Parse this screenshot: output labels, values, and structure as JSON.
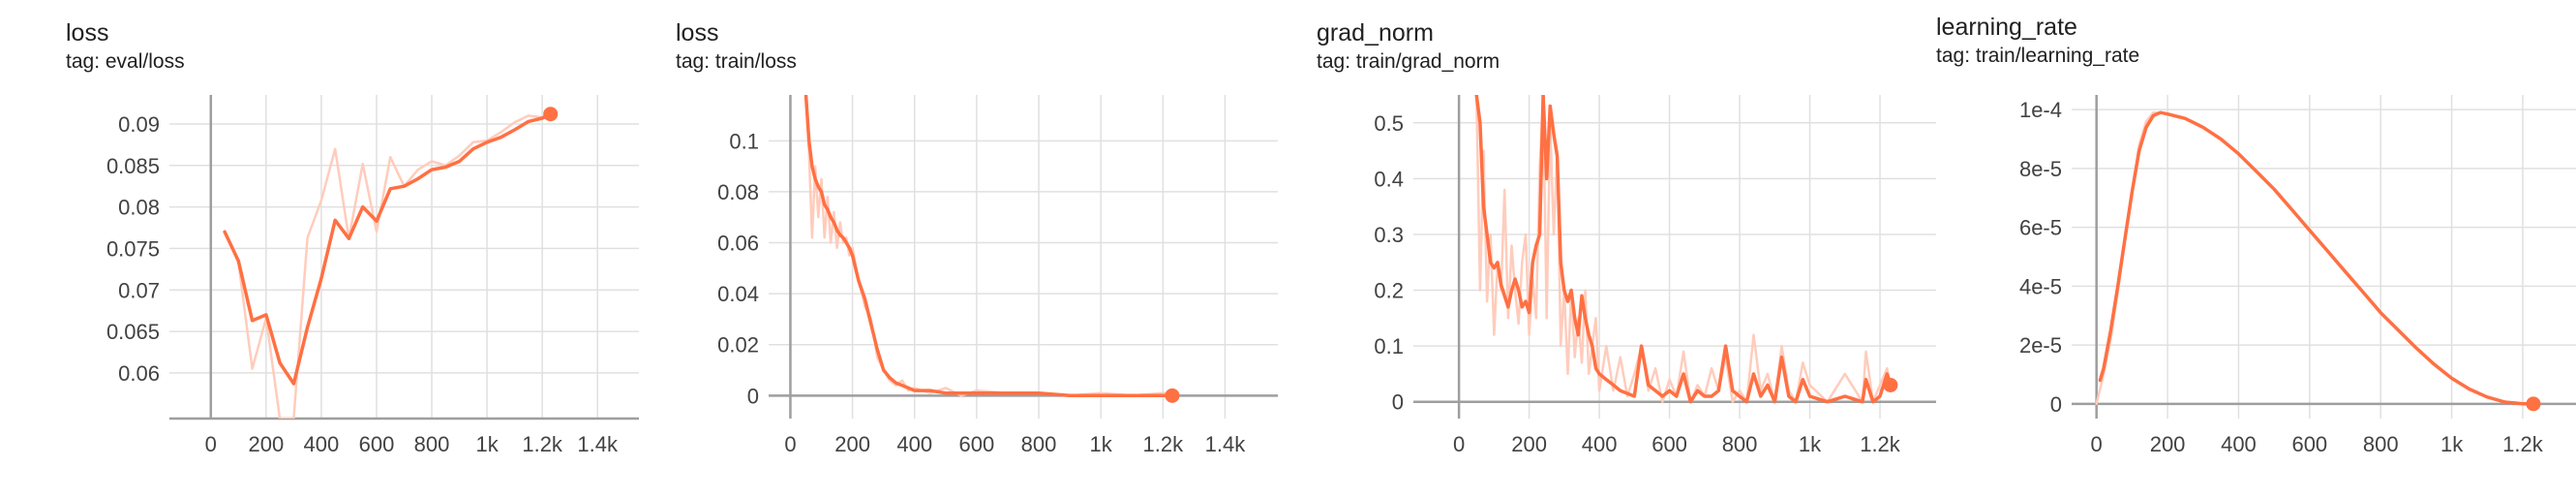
{
  "colors": {
    "smoothed": "#ff7043",
    "raw": "#ffccbc",
    "grid": "#e0e0e0",
    "axis": "#9e9e9e"
  },
  "chart_data": [
    {
      "type": "line",
      "title": "loss",
      "subtitle": "tag: eval/loss",
      "xlim": [
        -150,
        1550
      ],
      "ylim": [
        0.0545,
        0.0935
      ],
      "xticks": [
        0,
        200,
        400,
        600,
        800,
        1000,
        1200,
        1400
      ],
      "xtick_labels": [
        "0",
        "200",
        "400",
        "600",
        "800",
        "1k",
        "1.2k",
        "1.4k"
      ],
      "yticks": [
        0.06,
        0.065,
        0.07,
        0.075,
        0.08,
        0.085,
        0.09
      ],
      "ytick_labels": [
        "0.06",
        "0.065",
        "0.07",
        "0.075",
        "0.08",
        "0.085",
        "0.09"
      ],
      "series": [
        {
          "role": "raw",
          "x": [
            50,
            100,
            150,
            200,
            250,
            300,
            350,
            400,
            450,
            500,
            550,
            600,
            650,
            700,
            750,
            800,
            850,
            900,
            950,
            1000,
            1050,
            1100,
            1150,
            1200,
            1230
          ],
          "y": [
            0.0771,
            0.0733,
            0.0605,
            0.0666,
            0.0545,
            0.0545,
            0.0763,
            0.0808,
            0.087,
            0.0762,
            0.0852,
            0.077,
            0.086,
            0.0825,
            0.0845,
            0.0855,
            0.085,
            0.0862,
            0.0878,
            0.088,
            0.089,
            0.0902,
            0.091,
            0.0908,
            0.0912
          ]
        },
        {
          "role": "smoothed",
          "x": [
            50,
            100,
            150,
            200,
            250,
            300,
            350,
            400,
            450,
            500,
            550,
            600,
            650,
            700,
            750,
            800,
            850,
            900,
            950,
            1000,
            1050,
            1100,
            1150,
            1200,
            1230
          ],
          "y": [
            0.077,
            0.0735,
            0.0663,
            0.067,
            0.0612,
            0.0587,
            0.0655,
            0.0714,
            0.0784,
            0.0762,
            0.08,
            0.0783,
            0.0822,
            0.0825,
            0.0834,
            0.0845,
            0.0848,
            0.0855,
            0.087,
            0.0878,
            0.0884,
            0.0893,
            0.0903,
            0.0907,
            0.0912
          ]
        }
      ]
    },
    {
      "type": "line",
      "title": "loss",
      "subtitle": "tag: train/loss",
      "xlim": [
        -70,
        1570
      ],
      "ylim": [
        -0.009,
        0.118
      ],
      "xticks": [
        0,
        200,
        400,
        600,
        800,
        1000,
        1200,
        1400
      ],
      "xtick_labels": [
        "0",
        "200",
        "400",
        "600",
        "800",
        "1k",
        "1.2k",
        "1.4k"
      ],
      "yticks": [
        0,
        0.02,
        0.04,
        0.06,
        0.08,
        0.1
      ],
      "ytick_labels": [
        "0",
        "0.02",
        "0.04",
        "0.06",
        "0.08",
        "0.1"
      ],
      "series": [
        {
          "role": "raw",
          "x": [
            50,
            60,
            70,
            80,
            90,
            100,
            110,
            120,
            130,
            140,
            150,
            160,
            170,
            180,
            190,
            200,
            220,
            240,
            260,
            280,
            300,
            320,
            340,
            360,
            380,
            400,
            450,
            500,
            550,
            600,
            700,
            800,
            900,
            1000,
            1100,
            1200,
            1230
          ],
          "y": [
            0.118,
            0.095,
            0.062,
            0.09,
            0.07,
            0.085,
            0.062,
            0.078,
            0.06,
            0.072,
            0.058,
            0.068,
            0.06,
            0.062,
            0.055,
            0.058,
            0.045,
            0.035,
            0.03,
            0.015,
            0.01,
            0.006,
            0.004,
            0.006,
            0.002,
            0.003,
            0.001,
            0.003,
            0.0,
            0.002,
            0.001,
            0.001,
            0.0,
            0.001,
            0.0,
            0.001,
            0.001
          ]
        },
        {
          "role": "smoothed",
          "x": [
            50,
            60,
            70,
            80,
            90,
            100,
            110,
            120,
            130,
            140,
            150,
            160,
            170,
            180,
            190,
            200,
            220,
            240,
            260,
            280,
            300,
            320,
            340,
            360,
            380,
            400,
            450,
            500,
            550,
            600,
            700,
            800,
            900,
            1000,
            1100,
            1200,
            1230
          ],
          "y": [
            0.118,
            0.1,
            0.09,
            0.085,
            0.082,
            0.08,
            0.075,
            0.073,
            0.07,
            0.068,
            0.065,
            0.063,
            0.062,
            0.06,
            0.058,
            0.055,
            0.045,
            0.038,
            0.028,
            0.018,
            0.01,
            0.007,
            0.005,
            0.004,
            0.003,
            0.002,
            0.002,
            0.001,
            0.001,
            0.001,
            0.001,
            0.001,
            0.0,
            0.0,
            0.0,
            0.0,
            0.0
          ]
        }
      ]
    },
    {
      "type": "line",
      "title": "grad_norm",
      "subtitle": "tag: train/grad_norm",
      "xlim": [
        -130,
        1360
      ],
      "ylim": [
        -0.03,
        0.55
      ],
      "xticks": [
        0,
        200,
        400,
        600,
        800,
        1000,
        1200
      ],
      "xtick_labels": [
        "0",
        "200",
        "400",
        "600",
        "800",
        "1k",
        "1.2k"
      ],
      "yticks": [
        0,
        0.1,
        0.2,
        0.3,
        0.4,
        0.5
      ],
      "ytick_labels": [
        "0",
        "0.1",
        "0.2",
        "0.3",
        "0.4",
        "0.5"
      ],
      "series": [
        {
          "role": "raw",
          "x": [
            50,
            60,
            70,
            80,
            90,
            100,
            110,
            120,
            130,
            140,
            150,
            160,
            170,
            180,
            190,
            200,
            210,
            220,
            230,
            240,
            250,
            260,
            270,
            280,
            290,
            300,
            310,
            320,
            330,
            340,
            350,
            360,
            370,
            380,
            390,
            400,
            420,
            440,
            460,
            480,
            500,
            520,
            540,
            560,
            580,
            600,
            620,
            640,
            660,
            680,
            700,
            720,
            740,
            760,
            780,
            800,
            820,
            840,
            860,
            880,
            900,
            920,
            940,
            960,
            980,
            1000,
            1050,
            1100,
            1150,
            1160,
            1180,
            1200,
            1220,
            1230
          ],
          "y": [
            0.55,
            0.2,
            0.45,
            0.18,
            0.3,
            0.12,
            0.25,
            0.2,
            0.38,
            0.15,
            0.28,
            0.2,
            0.14,
            0.25,
            0.3,
            0.12,
            0.22,
            0.15,
            0.42,
            0.55,
            0.15,
            0.5,
            0.3,
            0.45,
            0.1,
            0.2,
            0.05,
            0.2,
            0.08,
            0.15,
            0.07,
            0.2,
            0.05,
            0.1,
            0.15,
            0.02,
            0.1,
            0.02,
            0.08,
            0.01,
            0.05,
            0.1,
            0.02,
            0.06,
            0.0,
            0.04,
            0.01,
            0.09,
            0.0,
            0.03,
            0.01,
            0.06,
            0.02,
            0.08,
            0.0,
            0.02,
            0.0,
            0.12,
            0.02,
            0.05,
            0.0,
            0.1,
            0.02,
            0.0,
            0.07,
            0.03,
            0.0,
            0.05,
            0.0,
            0.09,
            0.0,
            0.03,
            0.06,
            0.03
          ]
        },
        {
          "role": "smoothed",
          "x": [
            50,
            60,
            70,
            80,
            90,
            100,
            110,
            120,
            130,
            140,
            150,
            160,
            170,
            180,
            190,
            200,
            210,
            220,
            230,
            240,
            250,
            260,
            270,
            280,
            290,
            300,
            310,
            320,
            330,
            340,
            350,
            360,
            370,
            380,
            390,
            400,
            420,
            440,
            460,
            480,
            500,
            520,
            540,
            560,
            580,
            600,
            620,
            640,
            660,
            680,
            700,
            720,
            740,
            760,
            780,
            800,
            820,
            840,
            860,
            880,
            900,
            920,
            940,
            960,
            980,
            1000,
            1050,
            1100,
            1150,
            1160,
            1180,
            1200,
            1220,
            1230
          ],
          "y": [
            0.55,
            0.5,
            0.35,
            0.3,
            0.25,
            0.24,
            0.25,
            0.21,
            0.19,
            0.17,
            0.2,
            0.22,
            0.2,
            0.17,
            0.18,
            0.16,
            0.25,
            0.28,
            0.3,
            0.55,
            0.4,
            0.53,
            0.48,
            0.44,
            0.25,
            0.2,
            0.18,
            0.2,
            0.15,
            0.12,
            0.19,
            0.15,
            0.12,
            0.1,
            0.06,
            0.05,
            0.04,
            0.03,
            0.02,
            0.015,
            0.01,
            0.1,
            0.03,
            0.02,
            0.01,
            0.02,
            0.01,
            0.05,
            0.0,
            0.02,
            0.01,
            0.01,
            0.02,
            0.1,
            0.02,
            0.01,
            0.0,
            0.05,
            0.01,
            0.03,
            0.0,
            0.08,
            0.01,
            0.0,
            0.04,
            0.01,
            0.0,
            0.01,
            0.0,
            0.04,
            0.0,
            0.01,
            0.05,
            0.03
          ]
        }
      ]
    },
    {
      "type": "line",
      "title": "learning_rate",
      "subtitle": "tag: train/learning_rate",
      "xlim": [
        -70,
        1350
      ],
      "ylim": [
        -5e-06,
        0.000105
      ],
      "xticks": [
        0,
        200,
        400,
        600,
        800,
        1000,
        1200
      ],
      "xtick_labels": [
        "0",
        "200",
        "400",
        "600",
        "800",
        "1k",
        "1.2k"
      ],
      "yticks": [
        0,
        2e-05,
        4e-05,
        6e-05,
        8e-05,
        0.0001
      ],
      "ytick_labels": [
        "0",
        "2e-5",
        "4e-5",
        "6e-5",
        "8e-5",
        "1e-4"
      ],
      "series": [
        {
          "role": "raw",
          "x": [
            0,
            20,
            40,
            60,
            80,
            100,
            120,
            140,
            160,
            180,
            200,
            250,
            300,
            350,
            400,
            450,
            500,
            550,
            600,
            650,
            700,
            750,
            800,
            850,
            900,
            950,
            1000,
            1050,
            1100,
            1150,
            1200,
            1230
          ],
          "y": [
            0,
            1e-05,
            2.2e-05,
            3.8e-05,
            5.5e-05,
            7.2e-05,
            8.8e-05,
            9.6e-05,
            9.9e-05,
            9.9e-05,
            9.85e-05,
            9.7e-05,
            9.4e-05,
            9e-05,
            8.5e-05,
            7.9e-05,
            7.3e-05,
            6.6e-05,
            5.9e-05,
            5.2e-05,
            4.5e-05,
            3.8e-05,
            3.1e-05,
            2.5e-05,
            1.9e-05,
            1.35e-05,
            8.7e-06,
            5e-06,
            2.3e-06,
            6e-07,
            0,
            0
          ]
        },
        {
          "role": "smoothed",
          "x": [
            10,
            20,
            40,
            60,
            80,
            100,
            120,
            140,
            160,
            180,
            200,
            250,
            300,
            350,
            400,
            450,
            500,
            550,
            600,
            650,
            700,
            750,
            800,
            850,
            900,
            950,
            1000,
            1050,
            1100,
            1150,
            1200,
            1230
          ],
          "y": [
            8e-06,
            1.2e-05,
            2.5e-05,
            4e-05,
            5.6e-05,
            7.2e-05,
            8.6e-05,
            9.4e-05,
            9.8e-05,
            9.9e-05,
            9.85e-05,
            9.7e-05,
            9.4e-05,
            9e-05,
            8.5e-05,
            7.9e-05,
            7.3e-05,
            6.6e-05,
            5.9e-05,
            5.2e-05,
            4.5e-05,
            3.8e-05,
            3.1e-05,
            2.5e-05,
            1.9e-05,
            1.35e-05,
            8.7e-06,
            5e-06,
            2.3e-06,
            6e-07,
            0,
            0
          ]
        }
      ]
    }
  ]
}
